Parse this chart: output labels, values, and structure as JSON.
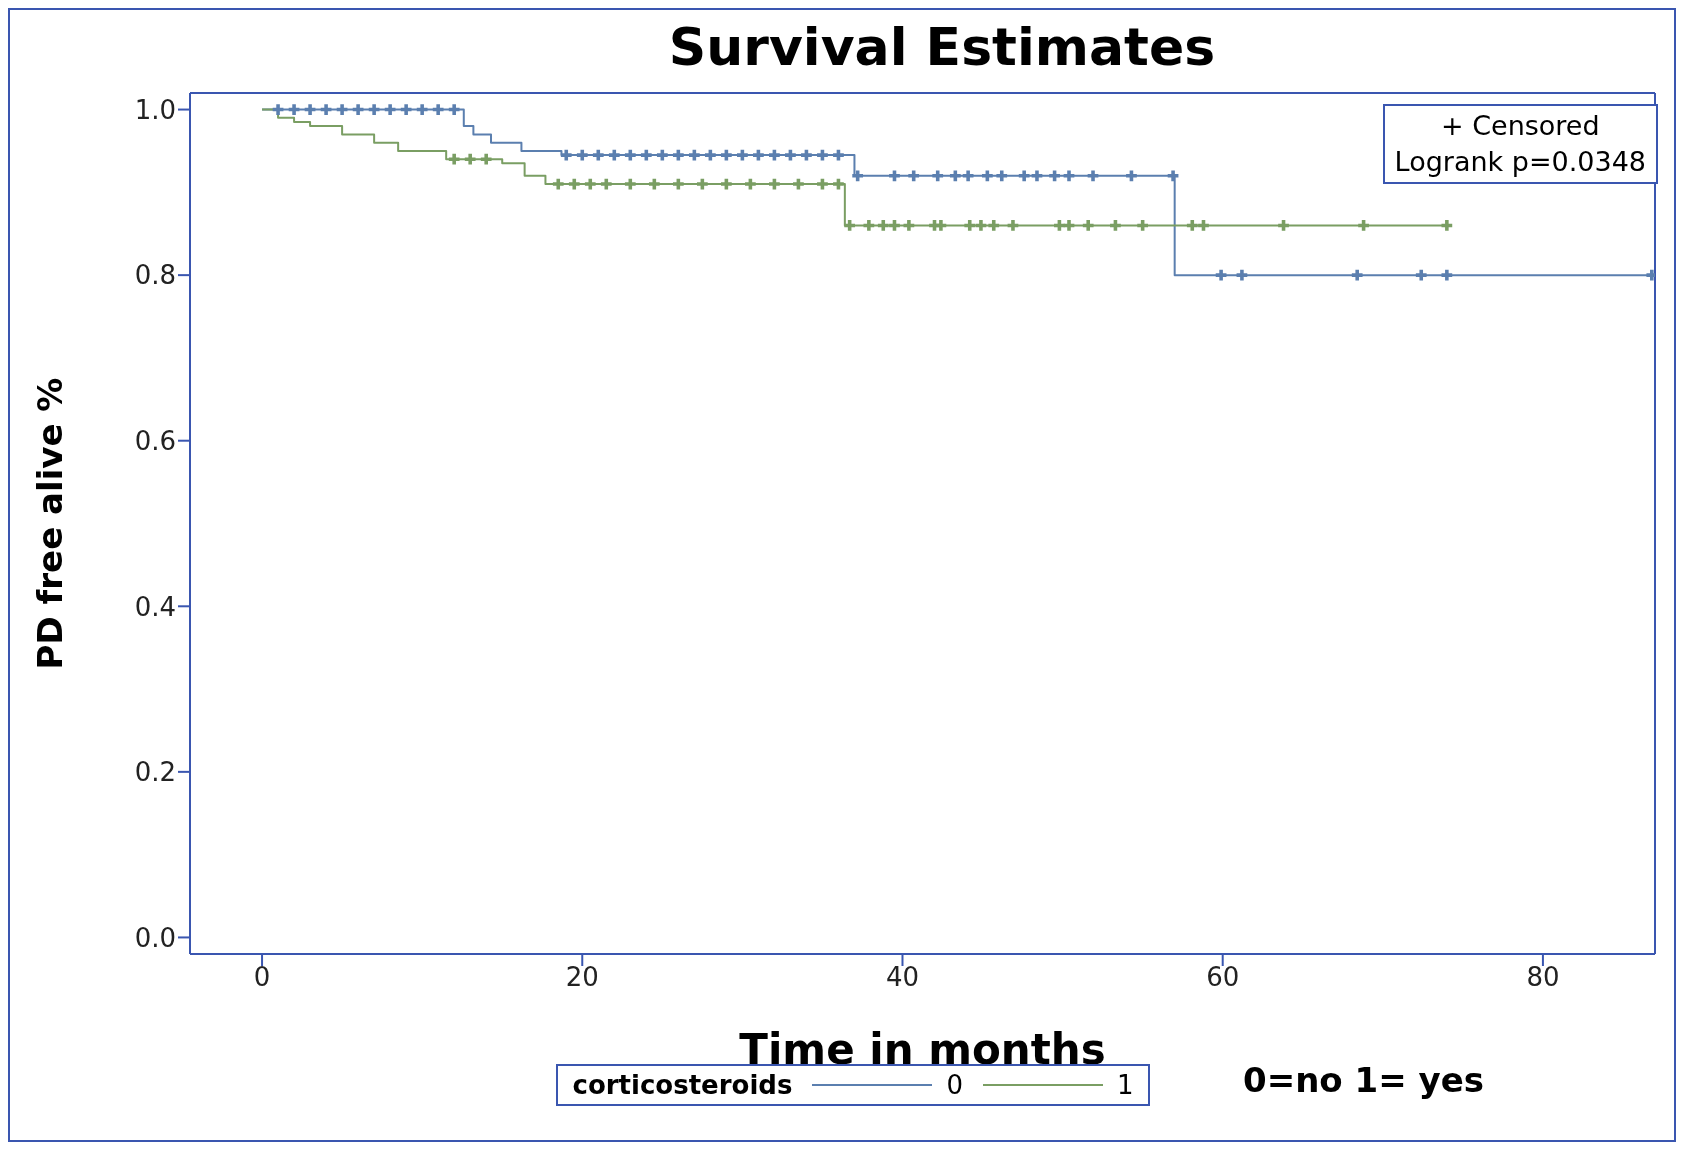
{
  "chart_data": {
    "type": "step",
    "title": "Survival Estimates",
    "xlabel": "Time in  months",
    "ylabel": "PD free alive %",
    "legend_title": "corticosteroids",
    "legend": "bottom",
    "grid": false,
    "xlim": [
      -4.5,
      87
    ],
    "xticks": [
      0,
      20,
      40,
      60,
      80
    ],
    "ylim": [
      -0.02,
      1.02
    ],
    "yticks": [
      {
        "value": 0,
        "label": "0.0"
      },
      {
        "value": 0.2,
        "label": "0.2"
      },
      {
        "value": 0.4,
        "label": "0.4"
      },
      {
        "value": 0.6,
        "label": "0.6"
      },
      {
        "value": 0.8,
        "label": "0.8"
      },
      {
        "value": 1,
        "label": "1.0"
      }
    ],
    "annotations": [
      "+ Censored",
      "Logrank p=0.0348",
      "0=no 1= yes"
    ],
    "series": [
      {
        "name": "0",
        "color": "#5b7faf",
        "x": [
          0,
          12.6,
          13.2,
          14.3,
          16.2,
          18.7,
          37.0,
          57.0,
          86.8
        ],
        "values": [
          1.0,
          0.98,
          0.97,
          0.96,
          0.95,
          0.945,
          0.92,
          0.8,
          0.8
        ]
      },
      {
        "name": "1",
        "color": "#7a9e63",
        "x": [
          0,
          1,
          2,
          3,
          5,
          7,
          8.5,
          11.5,
          15,
          16.4,
          17.7,
          36.4,
          74.0
        ],
        "values": [
          1.0,
          0.99,
          0.985,
          0.98,
          0.97,
          0.96,
          0.95,
          0.94,
          0.935,
          0.92,
          0.91,
          0.86,
          0.86
        ]
      },
      {
        "type": "scatter",
        "marker": "cross",
        "color": "#5b7faf",
        "x": [
          1,
          2,
          3,
          4,
          5,
          6,
          7,
          8,
          9,
          10,
          11,
          12,
          19,
          20,
          21,
          22,
          23,
          24,
          25,
          26,
          27,
          28,
          29,
          30,
          31,
          32,
          33,
          34,
          35,
          36,
          37.2,
          39.5,
          40.7,
          42.2,
          43.3,
          44.1,
          45.3,
          46.2,
          47.6,
          48.4,
          49.5,
          50.4,
          51.9,
          54.3,
          56.9,
          59.9,
          61.2,
          68.4,
          72.4,
          74.0,
          86.8
        ],
        "values": [
          1.0,
          1.0,
          1.0,
          1.0,
          1.0,
          1.0,
          1.0,
          1.0,
          1.0,
          1.0,
          1.0,
          1.0,
          0.945,
          0.945,
          0.945,
          0.945,
          0.945,
          0.945,
          0.945,
          0.945,
          0.945,
          0.945,
          0.945,
          0.945,
          0.945,
          0.945,
          0.945,
          0.945,
          0.945,
          0.945,
          0.92,
          0.92,
          0.92,
          0.92,
          0.92,
          0.92,
          0.92,
          0.92,
          0.92,
          0.92,
          0.92,
          0.92,
          0.92,
          0.92,
          0.92,
          0.8,
          0.8,
          0.8,
          0.8,
          0.8,
          0.8
        ]
      },
      {
        "type": "scatter",
        "marker": "cross",
        "color": "#7a9e63",
        "x": [
          12,
          13,
          14,
          18.5,
          19.5,
          20.5,
          21.5,
          23,
          24.5,
          26,
          27.5,
          29,
          30.5,
          32,
          33.5,
          35,
          36,
          36.7,
          37.9,
          38.8,
          39.5,
          40.4,
          42.0,
          42.4,
          44.2,
          44.9,
          45.7,
          46.9,
          49.8,
          50.4,
          51.6,
          53.3,
          55.0,
          58.1,
          58.8,
          63.8,
          68.8,
          74.0
        ],
        "values": [
          0.94,
          0.94,
          0.94,
          0.91,
          0.91,
          0.91,
          0.91,
          0.91,
          0.91,
          0.91,
          0.91,
          0.91,
          0.91,
          0.91,
          0.91,
          0.91,
          0.91,
          0.86,
          0.86,
          0.86,
          0.86,
          0.86,
          0.86,
          0.86,
          0.86,
          0.86,
          0.86,
          0.86,
          0.86,
          0.86,
          0.86,
          0.86,
          0.86,
          0.86,
          0.86,
          0.86,
          0.86,
          0.86
        ]
      }
    ]
  }
}
